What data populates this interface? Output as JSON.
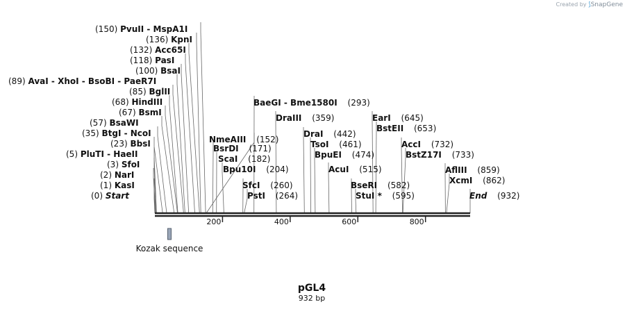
{
  "credit": {
    "prefix": "Created by",
    "brand": "SnapGene"
  },
  "sequence": {
    "name": "pGL4",
    "length_label": "932 bp",
    "length": 932
  },
  "axis": {
    "ticks": [
      {
        "pos": 200,
        "label": "200"
      },
      {
        "pos": 400,
        "label": "400"
      },
      {
        "pos": 600,
        "label": "600"
      },
      {
        "pos": 800,
        "label": "800"
      }
    ]
  },
  "feature": {
    "label": "Kozak sequence",
    "start": 38,
    "end": 48,
    "color": "#9aa6b8"
  },
  "sites": [
    {
      "id": "start",
      "pos": 0,
      "num": "(0)",
      "names": [
        "Start"
      ],
      "italic": true
    },
    {
      "id": "kasi",
      "pos": 1,
      "num": "(1)",
      "names": [
        "KasI"
      ]
    },
    {
      "id": "nari",
      "pos": 2,
      "num": "(2)",
      "names": [
        "NarI"
      ]
    },
    {
      "id": "sfoi",
      "pos": 3,
      "num": "(3)",
      "names": [
        "SfoI"
      ]
    },
    {
      "id": "pluti",
      "pos": 5,
      "num": "(5)",
      "names": [
        "PluTI",
        "HaeII"
      ]
    },
    {
      "id": "bbsi",
      "pos": 23,
      "num": "(23)",
      "names": [
        "BbsI"
      ]
    },
    {
      "id": "btgi",
      "pos": 35,
      "num": "(35)",
      "names": [
        "BtgI",
        "NcoI"
      ]
    },
    {
      "id": "bsawi",
      "pos": 57,
      "num": "(57)",
      "names": [
        "BsaWI"
      ]
    },
    {
      "id": "bsmi",
      "pos": 67,
      "num": "(67)",
      "names": [
        "BsmI"
      ]
    },
    {
      "id": "hindiii",
      "pos": 68,
      "num": "(68)",
      "names": [
        "HindIII"
      ]
    },
    {
      "id": "bglii",
      "pos": 85,
      "num": "(85)",
      "names": [
        "BglII"
      ]
    },
    {
      "id": "avai",
      "pos": 89,
      "num": "(89)",
      "names": [
        "AvaI",
        "XhoI",
        "BsoBI",
        "PaeR7I"
      ]
    },
    {
      "id": "bsai",
      "pos": 100,
      "num": "(100)",
      "names": [
        "BsaI"
      ]
    },
    {
      "id": "pasi",
      "pos": 118,
      "num": "(118)",
      "names": [
        "PasI"
      ]
    },
    {
      "id": "acc65i",
      "pos": 132,
      "num": "(132)",
      "names": [
        "Acc65I"
      ]
    },
    {
      "id": "kpni",
      "pos": 136,
      "num": "(136)",
      "names": [
        "KpnI"
      ]
    },
    {
      "id": "pvuii",
      "pos": 150,
      "num": "(150)",
      "names": [
        "PvuII",
        "MspA1I"
      ]
    },
    {
      "id": "nmeaiii",
      "pos": 152,
      "num": "(152)",
      "names": [
        "NmeAIII"
      ]
    },
    {
      "id": "bsrdi",
      "pos": 171,
      "num": "(171)",
      "names": [
        "BsrDI"
      ]
    },
    {
      "id": "scai",
      "pos": 182,
      "num": "(182)",
      "names": [
        "ScaI"
      ]
    },
    {
      "id": "bpu10i",
      "pos": 204,
      "num": "(204)",
      "names": [
        "Bpu10I"
      ]
    },
    {
      "id": "sfci",
      "pos": 260,
      "num": "(260)",
      "names": [
        "SfcI"
      ]
    },
    {
      "id": "psti",
      "pos": 264,
      "num": "(264)",
      "names": [
        "PstI"
      ]
    },
    {
      "id": "baegi",
      "pos": 293,
      "num": "(293)",
      "names": [
        "BaeGI",
        "Bme1580I"
      ]
    },
    {
      "id": "draiii",
      "pos": 359,
      "num": "(359)",
      "names": [
        "DraIII"
      ]
    },
    {
      "id": "drai",
      "pos": 442,
      "num": "(442)",
      "names": [
        "DraI"
      ]
    },
    {
      "id": "tsoi",
      "pos": 461,
      "num": "(461)",
      "names": [
        "TsoI"
      ]
    },
    {
      "id": "bpuei",
      "pos": 474,
      "num": "(474)",
      "names": [
        "BpuEI"
      ]
    },
    {
      "id": "acui",
      "pos": 515,
      "num": "(515)",
      "names": [
        "AcuI"
      ]
    },
    {
      "id": "bseri",
      "pos": 582,
      "num": "(582)",
      "names": [
        "BseRI"
      ]
    },
    {
      "id": "stui",
      "pos": 595,
      "num": "(595)",
      "names": [
        "StuI *"
      ]
    },
    {
      "id": "eari",
      "pos": 645,
      "num": "(645)",
      "names": [
        "EarI"
      ]
    },
    {
      "id": "bsteii",
      "pos": 653,
      "num": "(653)",
      "names": [
        "BstEII"
      ]
    },
    {
      "id": "acci",
      "pos": 732,
      "num": "(732)",
      "names": [
        "AccI"
      ]
    },
    {
      "id": "bstz17i",
      "pos": 733,
      "num": "(733)",
      "names": [
        "BstZ17I"
      ]
    },
    {
      "id": "afliii",
      "pos": 859,
      "num": "(859)",
      "names": [
        "AflIII"
      ]
    },
    {
      "id": "xcmi",
      "pos": 862,
      "num": "(862)",
      "names": [
        "XcmI"
      ]
    },
    {
      "id": "end",
      "pos": 932,
      "num": "(932)",
      "names": [
        "End"
      ],
      "italic": true
    }
  ]
}
